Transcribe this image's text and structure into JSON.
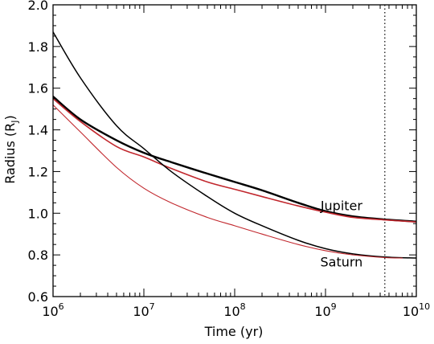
{
  "chart_data": {
    "type": "line",
    "xlabel": "Time (yr)",
    "ylabel_main": "Radius (R",
    "ylabel_sub": "J",
    "ylabel_close": ")",
    "x_scale": "log",
    "xlim": [
      1000000,
      10000000000
    ],
    "ylim": [
      0.6,
      2.0
    ],
    "x_ticks": [
      {
        "base": "10",
        "exp": "6",
        "value": 1000000
      },
      {
        "base": "10",
        "exp": "7",
        "value": 10000000
      },
      {
        "base": "10",
        "exp": "8",
        "value": 100000000
      },
      {
        "base": "10",
        "exp": "9",
        "value": 1000000000
      },
      {
        "base": "10",
        "exp": "10",
        "value": 10000000000
      }
    ],
    "y_ticks": [
      "0.6",
      "0.8",
      "1.0",
      "1.2",
      "1.4",
      "1.6",
      "1.8",
      "2.0"
    ],
    "vertical_line": {
      "x": 4500000000,
      "style": "dotted"
    },
    "annotations": [
      {
        "text": "Jupiter",
        "x": 1500000000,
        "y": 1.015
      },
      {
        "text": "Saturn",
        "x": 1500000000,
        "y": 0.745
      }
    ],
    "series": [
      {
        "color": "#000000",
        "width": 2.4,
        "x": [
          1000000,
          2000000,
          5000000,
          10000000,
          20000000,
          50000000,
          100000000,
          200000000,
          500000000,
          1000000000,
          2000000000,
          4500000000,
          10000000000
        ],
        "y": [
          1.56,
          1.45,
          1.35,
          1.29,
          1.245,
          1.19,
          1.15,
          1.11,
          1.05,
          1.01,
          0.985,
          0.97,
          0.96
        ]
      },
      {
        "color": "#c1272d",
        "width": 1.6,
        "x": [
          1000000,
          2000000,
          5000000,
          10000000,
          20000000,
          50000000,
          100000000,
          200000000,
          500000000,
          1000000000,
          2000000000,
          4500000000,
          10000000000
        ],
        "y": [
          1.55,
          1.44,
          1.32,
          1.27,
          1.215,
          1.15,
          1.115,
          1.08,
          1.035,
          1.005,
          0.98,
          0.968,
          0.958
        ]
      },
      {
        "color": "#000000",
        "width": 1.5,
        "x": [
          1000000,
          2000000,
          5000000,
          10000000,
          20000000,
          50000000,
          100000000,
          200000000,
          500000000,
          1000000000,
          2000000000,
          4500000000,
          10000000000
        ],
        "y": [
          1.87,
          1.65,
          1.42,
          1.31,
          1.2,
          1.08,
          1.0,
          0.94,
          0.87,
          0.83,
          0.805,
          0.79,
          0.785
        ]
      },
      {
        "color": "#c1272d",
        "width": 1.1,
        "x": [
          1000000,
          2000000,
          5000000,
          10000000,
          20000000,
          50000000,
          100000000,
          200000000,
          500000000,
          1000000000,
          2000000000,
          4500000000,
          7000000000
        ],
        "y": [
          1.52,
          1.39,
          1.22,
          1.12,
          1.05,
          0.98,
          0.94,
          0.9,
          0.85,
          0.82,
          0.8,
          0.787,
          0.785
        ]
      }
    ]
  }
}
